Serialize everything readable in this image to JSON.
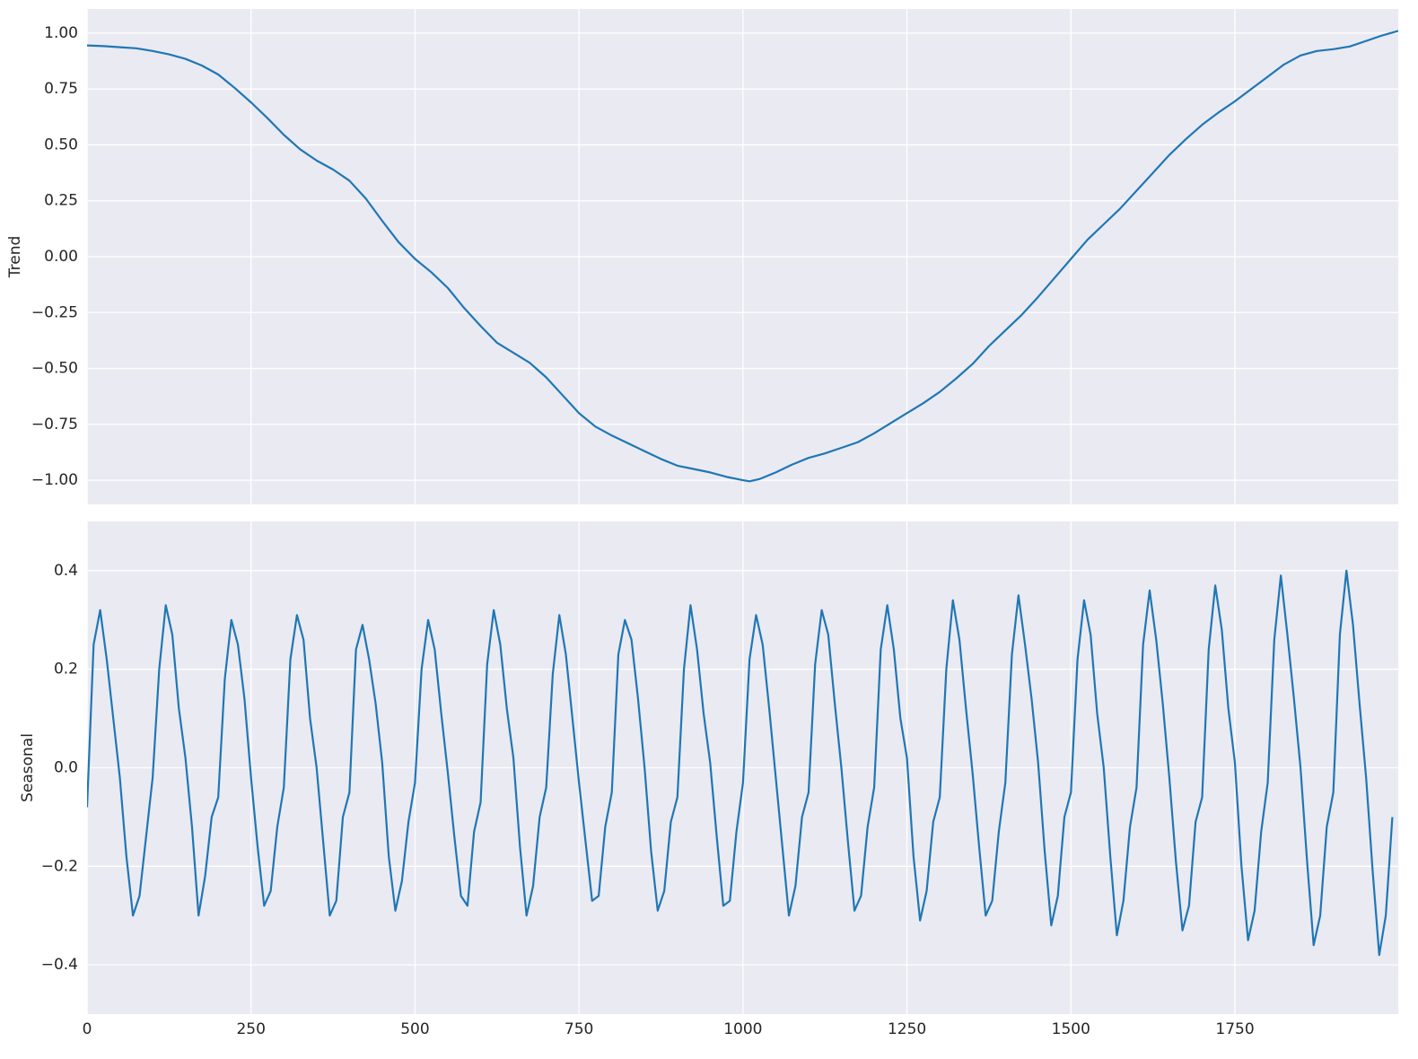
{
  "chart_data": [
    {
      "type": "line",
      "ylabel": "Trend",
      "grid": true,
      "xlim": [
        0,
        1999
      ],
      "ylim": [
        -1.108,
        1.108
      ],
      "xticks": [
        0,
        250,
        500,
        750,
        1000,
        1250,
        1500,
        1750
      ],
      "yticks": [
        {
          "value": -1,
          "label": "−1.00"
        },
        {
          "value": -0.75,
          "label": "−0.75"
        },
        {
          "value": -0.5,
          "label": "−0.50"
        },
        {
          "value": -0.25,
          "label": "−0.25"
        },
        {
          "value": 0,
          "label": "0.00"
        },
        {
          "value": 0.25,
          "label": "0.25"
        },
        {
          "value": 0.5,
          "label": "0.50"
        },
        {
          "value": 0.75,
          "label": "0.75"
        },
        {
          "value": 1,
          "label": "1.00"
        }
      ],
      "series": [
        {
          "color": "#1f77b4",
          "x": [
            0,
            25,
            50,
            75,
            100,
            125,
            150,
            175,
            200,
            225,
            250,
            275,
            300,
            325,
            350,
            375,
            400,
            425,
            450,
            475,
            500,
            525,
            550,
            575,
            600,
            625,
            650,
            675,
            700,
            725,
            750,
            775,
            800,
            825,
            850,
            875,
            900,
            925,
            950,
            975,
            1000,
            1010,
            1025,
            1050,
            1075,
            1100,
            1125,
            1150,
            1175,
            1200,
            1225,
            1250,
            1275,
            1300,
            1325,
            1350,
            1375,
            1400,
            1425,
            1450,
            1475,
            1500,
            1525,
            1550,
            1575,
            1600,
            1625,
            1650,
            1675,
            1700,
            1725,
            1750,
            1775,
            1800,
            1825,
            1850,
            1875,
            1900,
            1925,
            1950,
            1975,
            1999
          ],
          "values": [
            0.945,
            0.942,
            0.937,
            0.932,
            0.92,
            0.905,
            0.885,
            0.855,
            0.815,
            0.755,
            0.69,
            0.62,
            0.545,
            0.48,
            0.43,
            0.39,
            0.34,
            0.26,
            0.16,
            0.065,
            -0.01,
            -0.07,
            -0.14,
            -0.23,
            -0.31,
            -0.385,
            -0.43,
            -0.475,
            -0.54,
            -0.62,
            -0.7,
            -0.76,
            -0.8,
            -0.835,
            -0.87,
            -0.905,
            -0.935,
            -0.95,
            -0.965,
            -0.985,
            -1.0,
            -1.005,
            -0.995,
            -0.965,
            -0.93,
            -0.9,
            -0.88,
            -0.855,
            -0.83,
            -0.79,
            -0.745,
            -0.7,
            -0.655,
            -0.605,
            -0.545,
            -0.48,
            -0.4,
            -0.33,
            -0.26,
            -0.18,
            -0.095,
            -0.01,
            0.075,
            0.145,
            0.215,
            0.295,
            0.375,
            0.455,
            0.525,
            0.59,
            0.645,
            0.695,
            0.75,
            0.805,
            0.86,
            0.9,
            0.92,
            0.928,
            0.94,
            0.965,
            0.99,
            1.01
          ]
        }
      ]
    },
    {
      "type": "line",
      "ylabel": "Seasonal",
      "grid": true,
      "xlim": [
        0,
        1999
      ],
      "ylim": [
        -0.5,
        0.5
      ],
      "xticks": [
        0,
        250,
        500,
        750,
        1000,
        1250,
        1500,
        1750
      ],
      "yticks": [
        {
          "value": -0.4,
          "label": "−0.4"
        },
        {
          "value": -0.2,
          "label": "−0.2"
        },
        {
          "value": 0,
          "label": "0.0"
        },
        0.2,
        0.4
      ],
      "series": [
        {
          "color": "#1f77b4",
          "x": [
            0,
            10,
            20,
            30,
            40,
            50,
            60,
            70,
            80,
            90,
            100,
            110,
            120,
            130,
            140,
            150,
            160,
            170,
            180,
            190,
            200,
            210,
            220,
            230,
            240,
            250,
            260,
            270,
            280,
            290,
            300,
            310,
            320,
            330,
            340,
            350,
            360,
            370,
            380,
            390,
            400,
            410,
            420,
            430,
            440,
            450,
            460,
            470,
            480,
            490,
            500,
            510,
            520,
            530,
            540,
            550,
            560,
            570,
            580,
            590,
            600,
            610,
            620,
            630,
            640,
            650,
            660,
            670,
            680,
            690,
            700,
            710,
            720,
            730,
            740,
            750,
            760,
            770,
            780,
            790,
            800,
            810,
            820,
            830,
            840,
            850,
            860,
            870,
            880,
            890,
            900,
            910,
            920,
            930,
            940,
            950,
            960,
            970,
            980,
            990,
            1000,
            1010,
            1020,
            1030,
            1040,
            1050,
            1060,
            1070,
            1080,
            1090,
            1100,
            1110,
            1120,
            1130,
            1140,
            1150,
            1160,
            1170,
            1180,
            1190,
            1200,
            1210,
            1220,
            1230,
            1240,
            1250,
            1260,
            1270,
            1280,
            1290,
            1300,
            1310,
            1320,
            1330,
            1340,
            1350,
            1360,
            1370,
            1380,
            1390,
            1400,
            1410,
            1420,
            1430,
            1440,
            1450,
            1460,
            1470,
            1480,
            1490,
            1500,
            1510,
            1520,
            1530,
            1540,
            1550,
            1560,
            1570,
            1580,
            1590,
            1600,
            1610,
            1620,
            1630,
            1640,
            1650,
            1660,
            1670,
            1680,
            1690,
            1700,
            1710,
            1720,
            1730,
            1740,
            1750,
            1760,
            1770,
            1780,
            1790,
            1800,
            1810,
            1820,
            1830,
            1840,
            1850,
            1860,
            1870,
            1880,
            1890,
            1900,
            1910,
            1920,
            1930,
            1940,
            1950,
            1960,
            1970,
            1980,
            1990
          ],
          "values": [
            -0.08,
            0.25,
            0.32,
            0.22,
            0.1,
            -0.02,
            -0.18,
            -0.3,
            -0.26,
            -0.14,
            -0.02,
            0.2,
            0.33,
            0.27,
            0.12,
            0.02,
            -0.12,
            -0.3,
            -0.22,
            -0.1,
            -0.06,
            0.18,
            0.3,
            0.25,
            0.14,
            -0.02,
            -0.16,
            -0.28,
            -0.25,
            -0.12,
            -0.04,
            0.22,
            0.31,
            0.26,
            0.1,
            0.0,
            -0.15,
            -0.3,
            -0.27,
            -0.1,
            -0.05,
            0.24,
            0.29,
            0.22,
            0.13,
            0.01,
            -0.18,
            -0.29,
            -0.23,
            -0.11,
            -0.03,
            0.2,
            0.3,
            0.24,
            0.11,
            -0.01,
            -0.14,
            -0.26,
            -0.28,
            -0.13,
            -0.07,
            0.21,
            0.32,
            0.25,
            0.12,
            0.02,
            -0.16,
            -0.3,
            -0.24,
            -0.1,
            -0.04,
            0.19,
            0.31,
            0.23,
            0.1,
            -0.03,
            -0.15,
            -0.27,
            -0.26,
            -0.12,
            -0.05,
            0.23,
            0.3,
            0.26,
            0.14,
            0.0,
            -0.17,
            -0.29,
            -0.25,
            -0.11,
            -0.06,
            0.2,
            0.33,
            0.24,
            0.11,
            0.01,
            -0.14,
            -0.28,
            -0.27,
            -0.13,
            -0.03,
            0.22,
            0.31,
            0.25,
            0.12,
            -0.02,
            -0.16,
            -0.3,
            -0.24,
            -0.1,
            -0.05,
            0.21,
            0.32,
            0.27,
            0.13,
            0.0,
            -0.15,
            -0.29,
            -0.26,
            -0.12,
            -0.04,
            0.24,
            0.33,
            0.24,
            0.1,
            0.02,
            -0.18,
            -0.31,
            -0.25,
            -0.11,
            -0.06,
            0.2,
            0.34,
            0.26,
            0.12,
            -0.01,
            -0.16,
            -0.3,
            -0.27,
            -0.13,
            -0.03,
            0.23,
            0.35,
            0.25,
            0.14,
            0.01,
            -0.17,
            -0.32,
            -0.26,
            -0.1,
            -0.05,
            0.22,
            0.34,
            0.27,
            0.11,
            0.0,
            -0.18,
            -0.34,
            -0.27,
            -0.12,
            -0.04,
            0.25,
            0.36,
            0.26,
            0.13,
            -0.02,
            -0.19,
            -0.33,
            -0.28,
            -0.11,
            -0.06,
            0.24,
            0.37,
            0.28,
            0.12,
            0.01,
            -0.2,
            -0.35,
            -0.29,
            -0.13,
            -0.03,
            0.26,
            0.39,
            0.27,
            0.14,
            0.0,
            -0.19,
            -0.36,
            -0.3,
            -0.12,
            -0.05,
            0.27,
            0.4,
            0.29,
            0.13,
            -0.02,
            -0.21,
            -0.38,
            -0.3,
            -0.1
          ]
        }
      ]
    }
  ]
}
